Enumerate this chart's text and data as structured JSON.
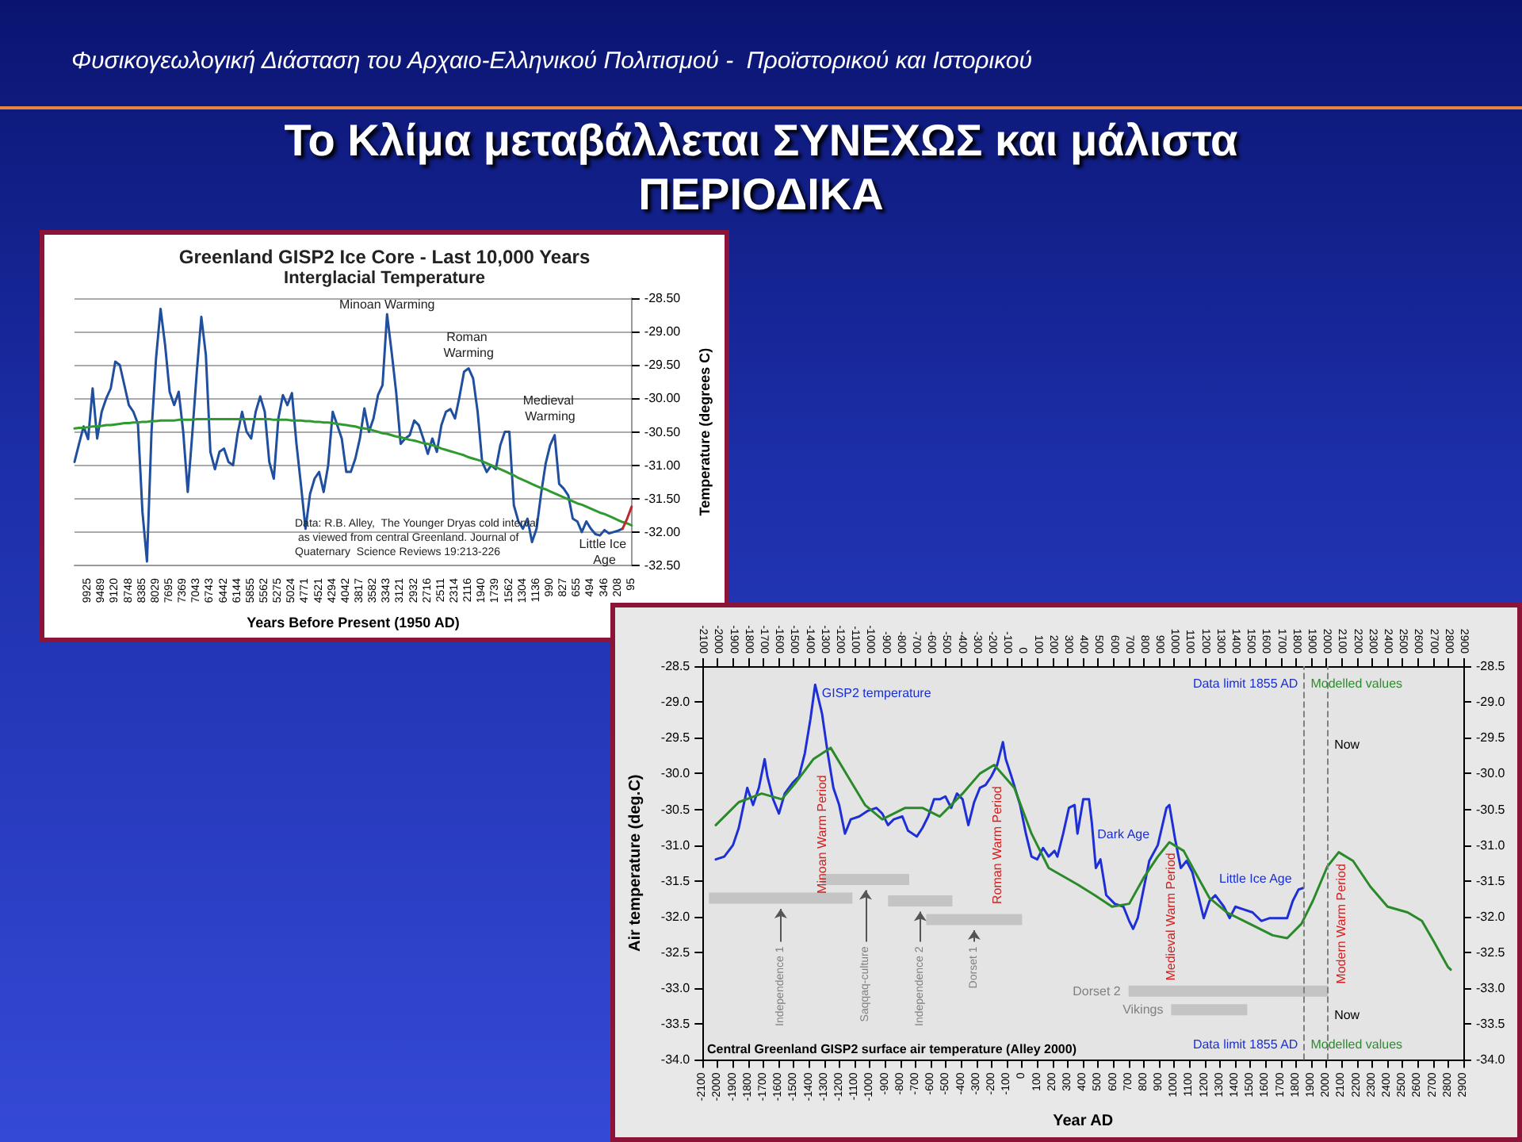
{
  "chart_data": [
    {
      "type": "other",
      "title": "Το Κλίμα μεταβάλλεται ΣΥΝΕΧΩΣ και μάλιστα ΠΕΡΙΟΔΙΚΑ",
      "subtitle": "Φυσικογεωλογική Διάσταση του Αρχαιο-Ελληνικού Πολιτισμού -  Προϊστορικού και Ιστορικού"
    },
    {
      "type": "line",
      "title": "Greenland GISP2 Ice Core - Last 10,000 Years",
      "subtitle": "Interglacial Temperature",
      "xlabel": "Years Before Present (1950 AD)",
      "ylabel": "Temperature (degrees C)",
      "categories": [
        null,
        null,
        null,
        "9925",
        null,
        null,
        "9489",
        null,
        null,
        "9120",
        null,
        null,
        "8748",
        null,
        null,
        "8385",
        null,
        null,
        "8029",
        null,
        null,
        "7695",
        null,
        null,
        "7369",
        null,
        null,
        "7043",
        null,
        null,
        "6743",
        null,
        null,
        "6442",
        null,
        null,
        "6144",
        null,
        null,
        "5855",
        null,
        null,
        "5562",
        null,
        null,
        "5275",
        null,
        null,
        "5024",
        null,
        null,
        "4771",
        null,
        null,
        "4521",
        null,
        null,
        "4294",
        null,
        null,
        "4042",
        null,
        null,
        "3817",
        null,
        null,
        "3582",
        null,
        null,
        "3343",
        null,
        null,
        "3121",
        null,
        null,
        "2932",
        null,
        null,
        "2716",
        null,
        null,
        "2511",
        null,
        null,
        "2314",
        null,
        null,
        "2116",
        null,
        null,
        "1940",
        null,
        null,
        "1739",
        null,
        null,
        "1562",
        null,
        null,
        "1304",
        null,
        null,
        "1136",
        null,
        null,
        "990",
        null,
        null,
        "827",
        null,
        null,
        "655",
        null,
        null,
        "494",
        null,
        null,
        "346",
        null,
        null,
        "208",
        null,
        null,
        "95"
      ],
      "series": [
        {
          "color": "#1f4f9e",
          "values": [
            -30.95,
            -30.68,
            -30.42,
            -30.61,
            -29.85,
            -30.6,
            -30.2,
            -30.0,
            -29.85,
            -29.45,
            -29.5,
            -29.8,
            -30.1,
            -30.2,
            -30.38,
            -31.7,
            -32.44,
            -30.5,
            -29.4,
            -28.66,
            -29.2,
            -29.9,
            -30.1,
            -29.9,
            -30.5,
            -31.4,
            -30.53,
            -29.6,
            -28.78,
            -29.35,
            -30.8,
            -31.06,
            -30.8,
            -30.75,
            -30.95,
            -31.0,
            -30.53,
            -30.2,
            -30.5,
            -30.6,
            -30.2,
            -29.97,
            -30.2,
            -30.95,
            -31.2,
            -30.3,
            -29.95,
            -30.1,
            -29.92,
            -30.68,
            -31.3,
            -31.95,
            -31.43,
            -31.2,
            -31.1,
            -31.4,
            -31.0,
            -30.2,
            -30.4,
            -30.6,
            -31.1,
            -31.1,
            -30.9,
            -30.6,
            -30.15,
            -30.5,
            -30.3,
            -29.95,
            -29.8,
            -28.74,
            -29.3,
            -29.9,
            -30.68,
            -30.6,
            -30.55,
            -30.33,
            -30.4,
            -30.6,
            -30.83,
            -30.6,
            -30.8,
            -30.4,
            -30.2,
            -30.16,
            -30.3,
            -29.97,
            -29.6,
            -29.55,
            -29.7,
            -30.2,
            -30.95,
            -31.1,
            -31.0,
            -31.06,
            -30.7,
            -30.5,
            -30.5,
            -31.6,
            -31.84,
            -31.95,
            -31.8,
            -32.15,
            -31.95,
            -31.43,
            -30.98,
            -30.7,
            -30.55,
            -31.28,
            -31.35,
            -31.45,
            -31.8,
            -31.84,
            -32.0,
            -31.84,
            -31.95,
            -32.03,
            -32.05,
            -31.97,
            -32.02,
            -32.0,
            -31.98,
            -31.95,
            null,
            null
          ]
        },
        {
          "color": "#2f9a2f",
          "values": [
            -30.45,
            -30.44,
            -30.44,
            -30.43,
            -30.42,
            -30.42,
            -30.41,
            -30.4,
            -30.4,
            -30.39,
            -30.38,
            -30.37,
            -30.37,
            -30.36,
            -30.36,
            -30.35,
            -30.35,
            -30.34,
            -30.34,
            -30.33,
            -30.33,
            -30.33,
            -30.33,
            -30.32,
            -30.32,
            -30.32,
            -30.32,
            -30.31,
            -30.31,
            -30.31,
            -30.31,
            -30.31,
            -30.31,
            -30.31,
            -30.31,
            -30.31,
            -30.31,
            -30.31,
            -30.31,
            -30.31,
            -30.31,
            -30.31,
            -30.31,
            -30.31,
            -30.32,
            -30.32,
            -30.32,
            -30.32,
            -30.33,
            -30.33,
            -30.33,
            -30.34,
            -30.34,
            -30.35,
            -30.35,
            -30.36,
            -30.36,
            -30.37,
            -30.38,
            -30.39,
            -30.4,
            -30.41,
            -30.42,
            -30.44,
            -30.45,
            -30.46,
            -30.48,
            -30.5,
            -30.52,
            -30.53,
            -30.55,
            -30.57,
            -30.58,
            -30.6,
            -30.62,
            -30.63,
            -30.65,
            -30.67,
            -30.68,
            -30.7,
            -30.72,
            -30.75,
            -30.77,
            -30.79,
            -30.81,
            -30.83,
            -30.85,
            -30.88,
            -30.9,
            -30.92,
            -30.94,
            -30.97,
            -31.0,
            -31.03,
            -31.06,
            -31.09,
            -31.12,
            -31.15,
            -31.19,
            -31.22,
            -31.25,
            -31.28,
            -31.31,
            -31.34,
            -31.36,
            -31.39,
            -31.42,
            -31.45,
            -31.48,
            -31.51,
            -31.54,
            -31.57,
            -31.59,
            -31.62,
            -31.65,
            -31.68,
            -31.71,
            -31.73,
            -31.76,
            -31.79,
            -31.82,
            -31.85,
            -31.87,
            -31.9
          ]
        },
        {
          "color": "#c0282c",
          "values": [
            null,
            null,
            null,
            null,
            null,
            null,
            null,
            null,
            null,
            null,
            null,
            null,
            null,
            null,
            null,
            null,
            null,
            null,
            null,
            null,
            null,
            null,
            null,
            null,
            null,
            null,
            null,
            null,
            null,
            null,
            null,
            null,
            null,
            null,
            null,
            null,
            null,
            null,
            null,
            null,
            null,
            null,
            null,
            null,
            null,
            null,
            null,
            null,
            null,
            null,
            null,
            null,
            null,
            null,
            null,
            null,
            null,
            null,
            null,
            null,
            null,
            null,
            null,
            null,
            null,
            null,
            null,
            null,
            null,
            null,
            null,
            null,
            null,
            null,
            null,
            null,
            null,
            null,
            null,
            null,
            null,
            null,
            null,
            null,
            null,
            null,
            null,
            null,
            null,
            null,
            null,
            null,
            null,
            null,
            null,
            null,
            null,
            null,
            null,
            null,
            null,
            null,
            null,
            null,
            null,
            null,
            null,
            null,
            null,
            null,
            null,
            null,
            null,
            null,
            null,
            null,
            null,
            null,
            null,
            null,
            null,
            -31.95,
            -31.8,
            -31.62
          ]
        }
      ],
      "ylim": [
        -32.5,
        -28.5
      ],
      "yticks": [
        {
          "value": -32.5,
          "label": "-32.50"
        },
        {
          "value": -32,
          "label": "-32.00"
        },
        {
          "value": -31.5,
          "label": "-31.50"
        },
        {
          "value": -31,
          "label": "-31.00"
        },
        {
          "value": -30.5,
          "label": "-30.50"
        },
        {
          "value": -30,
          "label": "-30.00"
        },
        {
          "value": -29.5,
          "label": "-29.50"
        },
        {
          "value": -29,
          "label": "-29.00"
        },
        {
          "value": -28.5,
          "label": "-28.50"
        }
      ],
      "grid": "y",
      "annotations": [
        "Minoan Warming",
        "Roman Warming",
        "Medieval Warming",
        "Little Ice Age",
        "Data: R.B. Alley,  The Younger Dryas cold interval as viewed from central Greenland. Journal of Quaternary  Science Reviews 19:213-226"
      ]
    },
    {
      "type": "line",
      "xlabel": "Year AD",
      "ylabel": "Air temperature (deg.C)",
      "series": [
        {
          "color": "#1e2fd6",
          "x": [
            -2013,
            -1957,
            -1900,
            -1862,
            -1806,
            -1768,
            -1730,
            -1692,
            -1674,
            -1636,
            -1598,
            -1560,
            -1504,
            -1466,
            -1428,
            -1391,
            -1360,
            -1315,
            -1277,
            -1240,
            -1202,
            -1164,
            -1126,
            -1070,
            -1013,
            -957,
            -919,
            -881,
            -843,
            -787,
            -749,
            -692,
            -655,
            -617,
            -579,
            -541,
            -504,
            -466,
            -428,
            -391,
            -353,
            -315,
            -277,
            -240,
            -202,
            -164,
            -126,
            -107,
            -70,
            -13,
            25,
            62,
            100,
            138,
            175,
            213,
            232,
            270,
            308,
            345,
            364,
            402,
            440,
            458,
            485,
            515,
            553,
            609,
            666,
            704,
            730,
            760,
            798,
            836,
            892,
            949,
            968,
            1006,
            1043,
            1081,
            1119,
            1157,
            1194,
            1232,
            1270,
            1326,
            1364,
            1402,
            1458,
            1515,
            1572,
            1628,
            1685,
            1742,
            1779,
            1817,
            1847
          ],
          "values": [
            -31.2,
            -31.16,
            -31.0,
            -30.76,
            -30.2,
            -30.44,
            -30.2,
            -29.8,
            -30.04,
            -30.36,
            -30.56,
            -30.28,
            -30.12,
            -30.04,
            -29.72,
            -29.24,
            -28.76,
            -29.16,
            -29.72,
            -30.2,
            -30.44,
            -30.84,
            -30.64,
            -30.6,
            -30.52,
            -30.48,
            -30.56,
            -30.72,
            -30.64,
            -30.6,
            -30.8,
            -30.88,
            -30.76,
            -30.6,
            -30.36,
            -30.36,
            -30.32,
            -30.48,
            -30.28,
            -30.36,
            -30.72,
            -30.4,
            -30.2,
            -30.16,
            -30.04,
            -29.88,
            -29.56,
            -29.8,
            -30.04,
            -30.44,
            -30.84,
            -31.16,
            -31.2,
            -31.04,
            -31.16,
            -31.08,
            -31.16,
            -30.84,
            -30.48,
            -30.44,
            -30.84,
            -30.36,
            -30.36,
            -30.68,
            -31.32,
            -31.2,
            -31.7,
            -31.82,
            -31.86,
            -32.06,
            -32.17,
            -32.02,
            -31.62,
            -31.22,
            -31.0,
            -30.48,
            -30.44,
            -30.92,
            -31.32,
            -31.22,
            -31.38,
            -31.7,
            -32.02,
            -31.78,
            -31.7,
            -31.86,
            -32.02,
            -31.86,
            -31.9,
            -31.94,
            -32.06,
            -32.02,
            -32.02,
            -32.02,
            -31.78,
            -31.62,
            -31.6
          ]
        },
        {
          "color": "#2a8a2a",
          "x": [
            -2013,
            -1862,
            -1711,
            -1579,
            -1485,
            -1372,
            -1258,
            -1145,
            -1032,
            -919,
            -768,
            -655,
            -541,
            -391,
            -277,
            -183,
            -51,
            62,
            175,
            364,
            477,
            591,
            704,
            798,
            892,
            968,
            1062,
            1138,
            1232,
            1345,
            1496,
            1647,
            1742,
            1836,
            1911,
            2006,
            2081,
            2175,
            2289,
            2402,
            2534,
            2628,
            2704,
            2798,
            2817
          ],
          "values": [
            -30.72,
            -30.4,
            -30.28,
            -30.36,
            -30.12,
            -29.8,
            -29.64,
            -30.04,
            -30.44,
            -30.64,
            -30.48,
            -30.48,
            -30.6,
            -30.28,
            -30.0,
            -29.88,
            -30.2,
            -30.84,
            -31.32,
            -31.55,
            -31.7,
            -31.86,
            -31.82,
            -31.46,
            -31.16,
            -30.96,
            -31.08,
            -31.38,
            -31.74,
            -31.94,
            -32.1,
            -32.26,
            -32.3,
            -32.1,
            -31.78,
            -31.3,
            -31.1,
            -31.22,
            -31.58,
            -31.86,
            -31.94,
            -32.06,
            -32.34,
            -32.7,
            -32.74
          ]
        },
        {
          "name": "Independence 1",
          "color": "#c4c4c4",
          "x": [
            -2058,
            -1115
          ],
          "values": [
            -31.74,
            -31.74
          ]
        },
        {
          "name": "Saqqaq-culture",
          "color": "#c4c4c4",
          "x": [
            -1315,
            -742
          ],
          "values": [
            -31.48,
            -31.48
          ]
        },
        {
          "name": "Independence 2",
          "color": "#c4c4c4",
          "x": [
            -881,
            -458
          ],
          "values": [
            -31.78,
            -31.78
          ]
        },
        {
          "name": "Dorset 1",
          "color": "#c4c4c4",
          "x": [
            -630,
            0
          ],
          "values": [
            -32.04,
            -32.04
          ]
        },
        {
          "name": "Dorset 2",
          "color": "#c4c4c4",
          "x": [
            700,
            2010
          ],
          "values": [
            -33.04,
            -33.04
          ]
        },
        {
          "name": "Vikings",
          "color": "#c4c4c4",
          "x": [
            980,
            1480
          ],
          "values": [
            -33.3,
            -33.3
          ]
        }
      ],
      "xlim": [
        -2100,
        2900
      ],
      "xticks": [
        -2100,
        -2000,
        -1900,
        -1800,
        -1700,
        -1600,
        -1500,
        -1400,
        -1300,
        -1200,
        -1100,
        -1000,
        -900,
        -800,
        -700,
        -600,
        -500,
        -400,
        -300,
        -200,
        -100,
        0,
        100,
        200,
        300,
        400,
        500,
        600,
        700,
        800,
        900,
        1000,
        1100,
        1200,
        1300,
        1400,
        1500,
        1600,
        1700,
        1800,
        1900,
        2000,
        2100,
        2200,
        2300,
        2400,
        2500,
        2600,
        2700,
        2800,
        2900
      ],
      "x2lim": [
        -2100,
        2900
      ],
      "x2ticks": [
        -2100,
        -2000,
        -1900,
        -1800,
        -1700,
        -1600,
        -1500,
        -1400,
        -1300,
        -1200,
        -1100,
        -1000,
        -900,
        -800,
        -700,
        -600,
        -500,
        -400,
        -300,
        -200,
        -100,
        0,
        100,
        200,
        300,
        400,
        500,
        600,
        700,
        800,
        900,
        1000,
        1100,
        1200,
        1300,
        1400,
        1500,
        1600,
        1700,
        1800,
        1900,
        2000,
        2100,
        2200,
        2300,
        2400,
        2500,
        2600,
        2700,
        2800,
        2900
      ],
      "ylim": [
        -34,
        -28.5
      ],
      "yticks": [
        {
          "value": -34,
          "label": "-34.0"
        },
        -33.5,
        {
          "value": -33,
          "label": "-33.0"
        },
        -32.5,
        {
          "value": -32,
          "label": "-32.0"
        },
        -31.5,
        {
          "value": -31,
          "label": "-31.0"
        },
        -30.5,
        {
          "value": -30,
          "label": "-30.0"
        },
        -29.5,
        {
          "value": -29,
          "label": "-29.0"
        },
        -28.5
      ],
      "y2lim": [
        -34,
        -28.5
      ],
      "y2ticks": [
        {
          "value": -34,
          "label": "-34.0"
        },
        -33.5,
        {
          "value": -33,
          "label": "-33.0"
        },
        -32.5,
        {
          "value": -32,
          "label": "-32.0"
        },
        -31.5,
        {
          "value": -31,
          "label": "-31.0"
        },
        -30.5,
        {
          "value": -30,
          "label": "-30.0"
        },
        -29.5,
        {
          "value": -29,
          "label": "-29.0"
        },
        -28.5
      ],
      "ref_lines": [
        {
          "axis": "x",
          "value": 1855,
          "line_style": "dashed",
          "color": "#808080"
        },
        {
          "axis": "x",
          "value": 2010,
          "line_style": "dashed",
          "color": "#808080"
        }
      ],
      "annotations": [
        "GISP2 temperature",
        "Minoan Warm Period",
        "Roman Warm Period",
        "Dark Age",
        "Medieval Warm Period",
        "Little Ice Age",
        "Modern Warm Period",
        "Data limit 1855 AD",
        "Modelled values",
        "Now",
        "Data limit 1855 AD",
        "Modelled values",
        "Now",
        "Central Greenland GISP2 surface air temperature (Alley 2000)"
      ]
    }
  ]
}
